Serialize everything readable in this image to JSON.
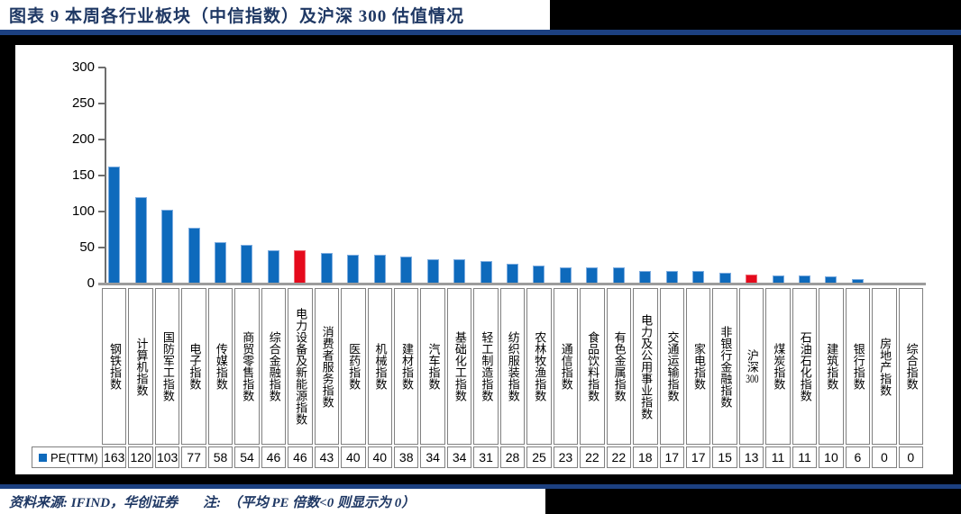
{
  "title": "图表 9   本周各行业板块（中信指数）及沪深 300 估值情况",
  "footer": {
    "source": "资料来源: IFIND，华创证券",
    "note": "注:  （平均 PE 倍数<0 则显示为 0）"
  },
  "colors": {
    "navy_text": "#1f3864",
    "navy_rule": "#1c4080",
    "bar_blue": "#0e6abc",
    "bar_blue_border": "#7eade0",
    "bar_red": "#e50a1c",
    "bar_red_border": "#ee6a75",
    "legend_marker": "#0e6abc"
  },
  "chart_data": {
    "type": "bar",
    "title": "本周各行业板块（中信指数）及沪深300估值情况",
    "legend_label": "PE(TTM)",
    "categories": [
      "钢铁指数",
      "计算机指数",
      "国防军工指数",
      "电子指数",
      "传媒指数",
      "商贸零售指数",
      "综合金融指数",
      "电力设备及新能源指数",
      "消费者服务指数",
      "医药指数",
      "机械指数",
      "建材指数",
      "汽车指数",
      "基础化工指数",
      "轻工制造指数",
      "纺织服装指数",
      "农林牧渔指数",
      "通信指数",
      "食品饮料指数",
      "有色金属指数",
      "电力及公用事业指数",
      "交通运输指数",
      "家电指数",
      "非银行金融指数",
      "沪深300",
      "煤炭指数",
      "石油石化指数",
      "建筑指数",
      "银行指数",
      "房地产指数",
      "综合指数"
    ],
    "series": [
      {
        "name": "PE(TTM)",
        "values": [
          163,
          120,
          103,
          77,
          58,
          54,
          46,
          46,
          43,
          40,
          40,
          38,
          34,
          34,
          31,
          28,
          25,
          23,
          22,
          22,
          18,
          17,
          17,
          15,
          13,
          11,
          11,
          10,
          6,
          0,
          0
        ]
      }
    ],
    "highlight_red_indices": [
      7,
      24
    ],
    "ylim": [
      0,
      300
    ],
    "yticks": [
      0,
      50,
      100,
      150,
      200,
      250,
      300
    ],
    "grid": "off",
    "legend_position": "table-left",
    "data_table": true
  }
}
